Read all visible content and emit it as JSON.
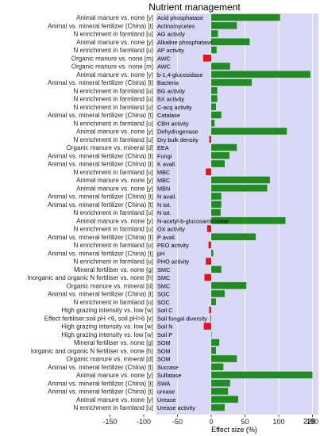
{
  "chart_data": {
    "type": "bar",
    "orientation": "horizontal",
    "title": "Nutrient management",
    "xlabel": "Effect size (%)",
    "xlim": [
      -170,
      160
    ],
    "xticks": [
      -150,
      -100,
      -50,
      0,
      50,
      100,
      150
    ],
    "grid": true,
    "legend": "none",
    "colors": {
      "panel": "#d9d9f7",
      "positive": "#228b22",
      "negative": "#ee1111",
      "grid": "#ffffff"
    },
    "annotations": [
      {
        "row": 50,
        "text": "228"
      }
    ],
    "categories": [
      "Animal manure vs. none [y]",
      "Animal vs. mineral fertilizer (China) [t]",
      "N enrichment in farmland [u]",
      "Animal manure vs. none [y]",
      "N enrichment in farmland [u]",
      "Organic manure vs. none [m]",
      "Organic manure vs. none [m]",
      "Animal manure vs. none [y]",
      "Animal vs. mineral fertilizer (China) [t]",
      "N enrichment in farmland [u]",
      "N enrichment in farmland [u]",
      "N enrichment in farmland [u]",
      "Animal vs. mineral fertilizer (China) [t]",
      "N enrichment in farmland [u]",
      "Animal manure vs. none [y]",
      "N enrichment in farmland [u]",
      "Organic manure vs. mineral [d]",
      "Animal vs. mineral fertilizer (China) [t]",
      "Animal vs. mineral fertilizer (China) [t]",
      "N enrichment in farmland [u]",
      "Animal manure vs. none [y]",
      "Animal manure vs. none [y]",
      "Animal vs. mineral fertilizer (China) [t]",
      "Animal vs. mineral fertilizer (China) [t]",
      "N enrichment in farmland [u]",
      "Animal manure vs. none [y]",
      "N enrichment in farmland [u]",
      "Animal vs. mineral fertilizer (China) [t]",
      "N enrichment in farmland [u]",
      "Animal vs. mineral fertilizer (China) [t]",
      "N enrichment in farmland [u]",
      "Mineral fertiliser vs. none [g]",
      "Inorganic and organic N fertiliser vs. none [h]",
      "Organic manure vs. mineral [d]",
      "Animal vs. mineral fertilizer (China) [t]",
      "N enrichment in farmland [u]",
      "High grazing intensity vs. low [w]",
      "Effect fertiliser:soil pH <6, soil pH>6 [v]",
      "High grazing intensity vs. low [w]",
      "High grazing intensity vs. low [w]",
      "Mineral fertiliser vs. none [g]",
      "Iorganic and organic N fertiliser vs. none [h]",
      "Organic manure vs. mineral [d]",
      "Animal vs. mineral fertilizer (China) [t]",
      "Animal manure vs. none [y]",
      "Animal vs. mineral fertilizer (China) [t]",
      "Animal vs. mineral fertilizer (China) [t]",
      "Animal manure vs. none [y]",
      "N enrichment in farmland [u]"
    ],
    "bar_labels": [
      "Acid phosphatase",
      "Actinomycetes",
      "AG activity",
      "Alkaline phosphatase",
      "AP activity",
      "AWC",
      "AWC",
      "b-1,4-glucosidase",
      "Bacteria",
      "BG activity",
      "BX activity",
      "C-acq activity",
      "Catalase",
      "CBH activity",
      "Dehydrogenase",
      "Dry bulk density",
      "EEA",
      "Fungi",
      "K avail.",
      "MBC",
      "MBC",
      "MBN",
      "N avail.",
      "N tot.",
      "N tot.",
      "N-acetyl-b-glucosaminidase",
      "OX activity",
      "P avail.",
      "PEO activity",
      "pH",
      "PHO activity",
      "SMC",
      "SMC",
      "SMC",
      "SOC",
      "SOC",
      "Soil C",
      "Soil fungal diversity",
      "Soil N",
      "Soil P",
      "SOM",
      "SOM",
      "SOM",
      "Sucrase",
      "Sulfatase",
      "SWA",
      "urease",
      "Urease",
      "Urease activity"
    ],
    "values": [
      102,
      38,
      10,
      57,
      8,
      -12,
      28,
      147,
      60,
      9,
      9,
      7,
      15,
      5,
      112,
      -3,
      38,
      27,
      20,
      -8,
      87,
      83,
      15,
      15,
      14,
      110,
      -6,
      66,
      -4,
      3,
      -8,
      15,
      -10,
      52,
      20,
      7,
      -3,
      -1,
      -11,
      0,
      12,
      7,
      38,
      18,
      150,
      28,
      25,
      40,
      20
    ]
  }
}
